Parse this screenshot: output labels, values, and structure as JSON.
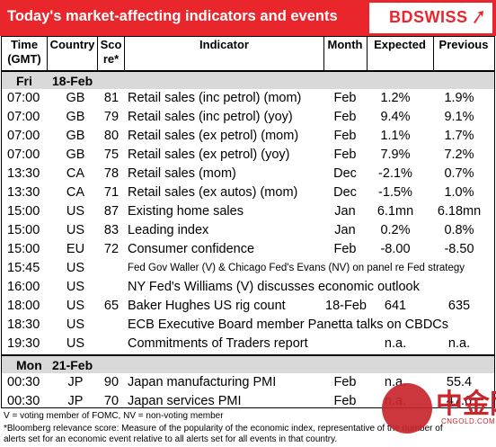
{
  "header": {
    "title": "Today's market-affecting indicators and events",
    "logo": "BDSWISS"
  },
  "columns": {
    "time": "Time (GMT)",
    "country": "Country",
    "score": "Score*",
    "indicator": "Indicator",
    "month": "Month",
    "expected": "Expected",
    "previous": "Previous"
  },
  "sections": [
    {
      "day": "Fri",
      "date": "18-Feb",
      "rows": [
        {
          "time": "07:00",
          "country": "GB",
          "score": "81",
          "indicator": "Retail sales (inc petrol) (mom)",
          "month": "Feb",
          "expected": "1.2%",
          "previous": "1.9%"
        },
        {
          "time": "07:00",
          "country": "GB",
          "score": "79",
          "indicator": "Retail sales (inc petrol) (yoy)",
          "month": "Feb",
          "expected": "9.4%",
          "previous": "9.1%"
        },
        {
          "time": "07:00",
          "country": "GB",
          "score": "80",
          "indicator": "Retail sales (ex petrol) (mom)",
          "month": "Feb",
          "expected": "1.1%",
          "previous": "1.7%"
        },
        {
          "time": "07:00",
          "country": "GB",
          "score": "75",
          "indicator": "Retail sales (ex petrol) (yoy)",
          "month": "Feb",
          "expected": "7.9%",
          "previous": "7.2%"
        },
        {
          "time": "13:30",
          "country": "CA",
          "score": "78",
          "indicator": "Retail sales (mom)",
          "month": "Dec",
          "expected": "-2.1%",
          "previous": "0.7%"
        },
        {
          "time": "13:30",
          "country": "CA",
          "score": "71",
          "indicator": "Retail sales (ex autos) (mom)",
          "month": "Dec",
          "expected": "-1.5%",
          "previous": "1.0%"
        },
        {
          "time": "15:00",
          "country": "US",
          "score": "87",
          "indicator": "Existing home sales",
          "month": "Jan",
          "expected": "6.1mn",
          "previous": "6.18mn"
        },
        {
          "time": "15:00",
          "country": "US",
          "score": "83",
          "indicator": "Leading index",
          "month": "Jan",
          "expected": "0.2%",
          "previous": "0.8%"
        },
        {
          "time": "15:00",
          "country": "EU",
          "score": "72",
          "indicator": "Consumer confidence",
          "month": "Feb",
          "expected": "-8.00",
          "previous": "-8.50"
        },
        {
          "time": "15:45",
          "country": "US",
          "score": "",
          "indicator": "Fed Gov Waller (V) & Chicago Fed's Evans (NV) on panel re Fed strategy",
          "month": "",
          "expected": "",
          "previous": "",
          "small": true
        },
        {
          "time": "16:00",
          "country": "US",
          "score": "",
          "indicator": "NY Fed's Williams (V) discusses economic outlook",
          "month": "",
          "expected": "",
          "previous": ""
        },
        {
          "time": "18:00",
          "country": "US",
          "score": "65",
          "indicator": "Baker Hughes US rig count",
          "month": "18-Feb",
          "expected": "641",
          "previous": "635"
        },
        {
          "time": "18:30",
          "country": "US",
          "score": "",
          "indicator": "ECB Executive Board member Panetta talks on CBDCs",
          "month": "",
          "expected": "",
          "previous": ""
        },
        {
          "time": "19:30",
          "country": "US",
          "score": "",
          "indicator": "Commitments of Traders  report",
          "month": "",
          "expected": "n.a.",
          "previous": "n.a."
        }
      ]
    },
    {
      "day": "Mon",
      "date": "21-Feb",
      "rows": [
        {
          "time": "00:30",
          "country": "JP",
          "score": "90",
          "indicator": "Japan manufacturing PMI",
          "month": "Feb",
          "expected": "n.a.",
          "previous": "55.4"
        },
        {
          "time": "00:30",
          "country": "JP",
          "score": "70",
          "indicator": "Japan services PMI",
          "month": "Feb",
          "expected": "n.a.",
          "previous": "47.6"
        }
      ]
    }
  ],
  "footnotes": [
    "V = voting member of FOMC, NV = non-voting member",
    "*Bloomberg relevance score:  Measure of the popularity of the economic index, representative of the number of",
    "alerts set for an economic event relative to all alerts set for all events in that country."
  ],
  "watermark": {
    "glyph": "中金网",
    "site": "CNGOLD.COM.CN"
  }
}
